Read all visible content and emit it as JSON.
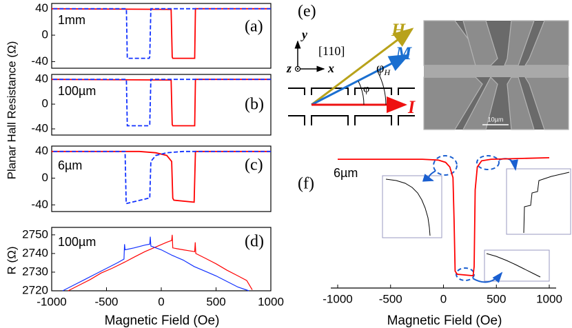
{
  "shared_ylabel": "Planar Hall Resistance (Ω)",
  "diagram_e": {
    "label": "(e)",
    "axis_y": "y",
    "direction": "[110]",
    "axis_z": "z",
    "axis_x": "x",
    "H": "H",
    "M": "M",
    "phi": "φ",
    "phi_H": {
      "base": "φ",
      "sub": "H"
    },
    "I": "I",
    "scale_bar": "10µm"
  },
  "chart_data": [
    {
      "type": "line",
      "panel_label": "(a)",
      "annotation": "1mm",
      "xlim": [
        -1000,
        1000
      ],
      "ylim": [
        -50,
        48
      ],
      "yticks": [
        40,
        0,
        -40
      ],
      "series": [
        {
          "color": "#ff0000",
          "dash": false,
          "x": [
            -1000,
            90,
            100,
            105,
            305,
            312,
            1000
          ],
          "values": [
            40,
            39,
            -33,
            -35,
            -35,
            40,
            40
          ]
        },
        {
          "color": "#1030ff",
          "dash": true,
          "x": [
            1000,
            -95,
            -105,
            -110,
            -310,
            -318,
            -1000
          ],
          "values": [
            40,
            40,
            -33,
            -35,
            -35,
            40,
            40
          ]
        }
      ]
    },
    {
      "type": "line",
      "panel_label": "(b)",
      "annotation": "100µm",
      "xlim": [
        -1000,
        1000
      ],
      "ylim": [
        -50,
        48
      ],
      "yticks": [
        40,
        0,
        -40
      ],
      "series": [
        {
          "color": "#ff0000",
          "dash": false,
          "x": [
            -1000,
            90,
            100,
            105,
            305,
            312,
            1000
          ],
          "values": [
            40,
            39,
            -33,
            -35,
            -35,
            40,
            40
          ]
        },
        {
          "color": "#1030ff",
          "dash": true,
          "x": [
            1000,
            -95,
            -105,
            -110,
            -310,
            -318,
            -1000
          ],
          "values": [
            40,
            40,
            -33,
            -35,
            -35,
            40,
            40
          ]
        }
      ]
    },
    {
      "type": "line",
      "panel_label": "(c)",
      "annotation": "6µm",
      "xlim": [
        -1000,
        1000
      ],
      "ylim": [
        -50,
        48
      ],
      "yticks": [
        40,
        0,
        -40
      ],
      "series": [
        {
          "color": "#ff0000",
          "dash": false,
          "x": [
            -1000,
            -200,
            -50,
            50,
            95,
            105,
            115,
            300,
            312,
            1000
          ],
          "values": [
            40,
            40,
            38,
            34,
            25,
            -30,
            -33,
            -36,
            40,
            40
          ]
        },
        {
          "color": "#1030ff",
          "dash": true,
          "x": [
            1000,
            200,
            50,
            -50,
            -95,
            -105,
            -115,
            -320,
            -330,
            -1000
          ],
          "values": [
            40,
            40,
            38,
            34,
            25,
            -30,
            -30,
            -38,
            40,
            40
          ]
        }
      ]
    },
    {
      "type": "line",
      "panel_label": "(d)",
      "annotation": "100µm",
      "ylabel": "R (Ω)",
      "xlabel": "Magnetic Field (Oe)",
      "xlim": [
        -1000,
        1000
      ],
      "ylim": [
        2720,
        2754
      ],
      "xticks": [
        -1000,
        -500,
        0,
        500,
        1000
      ],
      "yticks": [
        2720,
        2730,
        2740,
        2750
      ],
      "series": [
        {
          "color": "#ff0000",
          "dash": false,
          "x": [
            -850,
            -750,
            -650,
            -550,
            -450,
            -330,
            -250,
            -150,
            -50,
            50,
            95,
            100,
            105,
            150,
            200,
            250,
            305,
            310,
            315,
            400,
            500,
            600,
            700,
            780,
            830
          ],
          "values": [
            2720,
            2723,
            2726,
            2729.5,
            2732,
            2735.5,
            2738,
            2741,
            2743.5,
            2746,
            2747,
            2750,
            2743,
            2742.5,
            2742,
            2741.5,
            2741,
            2746,
            2740,
            2737.5,
            2734.5,
            2731,
            2728,
            2725.5,
            2720.5
          ]
        },
        {
          "color": "#1030ff",
          "dash": false,
          "x": [
            -900,
            -800,
            -700,
            -600,
            -500,
            -400,
            -340,
            -335,
            -330,
            -250,
            -150,
            -105,
            -100,
            -95,
            0,
            100,
            200,
            300,
            400,
            500,
            600,
            700,
            800
          ],
          "values": [
            2720,
            2723,
            2726,
            2729,
            2732,
            2735,
            2737,
            2745,
            2742,
            2743,
            2744.5,
            2745,
            2749,
            2744,
            2742,
            2739,
            2736.5,
            2733,
            2730.5,
            2728,
            2725,
            2722,
            2720
          ]
        }
      ]
    },
    {
      "type": "line",
      "panel_label": "(f)",
      "annotation": "6µm",
      "xlabel": "Magnetic Field (Oe)",
      "xlim": [
        -1000,
        1000
      ],
      "ylim": [
        -44,
        54
      ],
      "xticks": [
        -1000,
        -500,
        0,
        500,
        1000
      ],
      "series": [
        {
          "color": "#ff0000",
          "dash": false,
          "x": [
            -1000,
            -200,
            -50,
            20,
            60,
            90,
            100,
            110,
            130,
            280,
            290,
            300,
            320,
            360,
            450,
            1000
          ],
          "values": [
            40,
            40,
            39.5,
            38,
            35,
            28,
            0,
            -33,
            -35,
            -36,
            -30,
            20,
            35,
            39,
            40,
            41
          ]
        }
      ]
    }
  ]
}
